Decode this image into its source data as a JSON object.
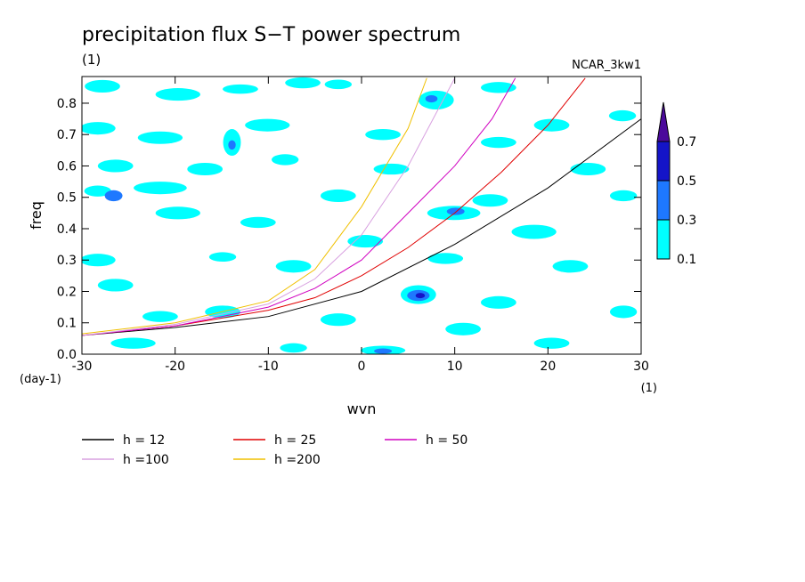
{
  "chart_data": {
    "type": "contour",
    "title": "precipitation flux S−T power spectrum",
    "subtitle": "(1)",
    "annotation": "NCAR_3kw1",
    "x_label": "wvn",
    "x_unit": "(1)",
    "y_label": "freq",
    "y_unit": "(day-1)",
    "xlim": [
      -30,
      30
    ],
    "xticks": [
      -30,
      -20,
      -10,
      0,
      10,
      20,
      30
    ],
    "ylim": [
      0,
      0.885
    ],
    "yticks": [
      {
        "value": 0,
        "label": "0.0"
      },
      0.1,
      0.2,
      0.3,
      0.4,
      0.5,
      0.6,
      0.7,
      0.8
    ],
    "levels": [
      0.1,
      0.3,
      0.5,
      0.7
    ],
    "level_colors": [
      "#00ffff",
      "#1e78ff",
      "#1414c8",
      "#4b0a9b"
    ],
    "patches": [
      {
        "x": -27.8,
        "y": 0.854,
        "w": 3.8,
        "h": 0.04,
        "level": 0.1
      },
      {
        "x": -19.7,
        "y": 0.828,
        "w": 4.8,
        "h": 0.04,
        "level": 0.1
      },
      {
        "x": -13,
        "y": 0.845,
        "w": 3.8,
        "h": 0.03,
        "level": 0.1
      },
      {
        "x": -6.3,
        "y": 0.865,
        "w": 3.8,
        "h": 0.035,
        "level": 0.1
      },
      {
        "x": -2.5,
        "y": 0.86,
        "w": 2.9,
        "h": 0.03,
        "level": 0.1
      },
      {
        "x": 8,
        "y": 0.81,
        "w": 3.8,
        "h": 0.06,
        "level": 0.1
      },
      {
        "x": 14.7,
        "y": 0.85,
        "w": 3.8,
        "h": 0.035,
        "level": 0.1
      },
      {
        "x": 28,
        "y": 0.76,
        "w": 2.9,
        "h": 0.035,
        "level": 0.1
      },
      {
        "x": 20.4,
        "y": 0.73,
        "w": 3.8,
        "h": 0.04,
        "level": 0.1
      },
      {
        "x": -28.3,
        "y": 0.72,
        "w": 3.8,
        "h": 0.04,
        "level": 0.1
      },
      {
        "x": -21.6,
        "y": 0.69,
        "w": 4.8,
        "h": 0.04,
        "level": 0.1
      },
      {
        "x": -10.1,
        "y": 0.73,
        "w": 4.8,
        "h": 0.04,
        "level": 0.1
      },
      {
        "x": -13.9,
        "y": 0.675,
        "w": 1.9,
        "h": 0.085,
        "level": 0.1
      },
      {
        "x": 2.3,
        "y": 0.7,
        "w": 3.8,
        "h": 0.035,
        "level": 0.1
      },
      {
        "x": 14.7,
        "y": 0.675,
        "w": 3.8,
        "h": 0.035,
        "level": 0.1
      },
      {
        "x": -26.4,
        "y": 0.6,
        "w": 3.8,
        "h": 0.04,
        "level": 0.1
      },
      {
        "x": -16.8,
        "y": 0.59,
        "w": 3.8,
        "h": 0.04,
        "level": 0.1
      },
      {
        "x": -8.2,
        "y": 0.62,
        "w": 2.9,
        "h": 0.035,
        "level": 0.1
      },
      {
        "x": 3.2,
        "y": 0.59,
        "w": 3.8,
        "h": 0.035,
        "level": 0.1
      },
      {
        "x": 24.3,
        "y": 0.59,
        "w": 3.8,
        "h": 0.04,
        "level": 0.1
      },
      {
        "x": -28.3,
        "y": 0.52,
        "w": 2.9,
        "h": 0.035,
        "level": 0.1
      },
      {
        "x": -21.6,
        "y": 0.53,
        "w": 5.7,
        "h": 0.04,
        "level": 0.1
      },
      {
        "x": -2.5,
        "y": 0.505,
        "w": 3.8,
        "h": 0.04,
        "level": 0.1
      },
      {
        "x": 13.8,
        "y": 0.49,
        "w": 3.8,
        "h": 0.04,
        "level": 0.1
      },
      {
        "x": 28.1,
        "y": 0.505,
        "w": 2.9,
        "h": 0.035,
        "level": 0.1
      },
      {
        "x": -19.7,
        "y": 0.45,
        "w": 4.8,
        "h": 0.04,
        "level": 0.1
      },
      {
        "x": -11.1,
        "y": 0.42,
        "w": 3.8,
        "h": 0.035,
        "level": 0.1
      },
      {
        "x": 9.9,
        "y": 0.45,
        "w": 5.7,
        "h": 0.045,
        "level": 0.1
      },
      {
        "x": 18.5,
        "y": 0.39,
        "w": 4.8,
        "h": 0.045,
        "level": 0.1
      },
      {
        "x": 0.4,
        "y": 0.36,
        "w": 3.8,
        "h": 0.04,
        "level": 0.1
      },
      {
        "x": -28.3,
        "y": 0.3,
        "w": 3.8,
        "h": 0.04,
        "level": 0.1
      },
      {
        "x": -7.3,
        "y": 0.28,
        "w": 3.8,
        "h": 0.04,
        "level": 0.1
      },
      {
        "x": 9,
        "y": 0.305,
        "w": 3.8,
        "h": 0.035,
        "level": 0.1
      },
      {
        "x": 22.4,
        "y": 0.28,
        "w": 3.8,
        "h": 0.04,
        "level": 0.1
      },
      {
        "x": -26.4,
        "y": 0.22,
        "w": 3.8,
        "h": 0.04,
        "level": 0.1
      },
      {
        "x": 6.1,
        "y": 0.19,
        "w": 3.8,
        "h": 0.06,
        "level": 0.1
      },
      {
        "x": 14.7,
        "y": 0.165,
        "w": 3.8,
        "h": 0.04,
        "level": 0.1
      },
      {
        "x": -21.6,
        "y": 0.12,
        "w": 3.8,
        "h": 0.035,
        "level": 0.1
      },
      {
        "x": -14.9,
        "y": 0.135,
        "w": 3.8,
        "h": 0.04,
        "level": 0.1
      },
      {
        "x": -2.5,
        "y": 0.11,
        "w": 3.8,
        "h": 0.04,
        "level": 0.1
      },
      {
        "x": 10.9,
        "y": 0.08,
        "w": 3.8,
        "h": 0.04,
        "level": 0.1
      },
      {
        "x": 28.1,
        "y": 0.135,
        "w": 2.9,
        "h": 0.04,
        "level": 0.1
      },
      {
        "x": -24.5,
        "y": 0.035,
        "w": 4.8,
        "h": 0.035,
        "level": 0.1
      },
      {
        "x": 2.3,
        "y": 0.012,
        "w": 4.8,
        "h": 0.03,
        "level": 0.1
      },
      {
        "x": 20.4,
        "y": 0.035,
        "w": 3.8,
        "h": 0.035,
        "level": 0.1
      },
      {
        "x": -7.3,
        "y": 0.02,
        "w": 2.9,
        "h": 0.03,
        "level": 0.1
      },
      {
        "x": -14.9,
        "y": 0.31,
        "w": 2.9,
        "h": 0.03,
        "level": 0.1
      },
      {
        "x": 7.5,
        "y": 0.814,
        "w": 1.3,
        "h": 0.023,
        "level": 0.3
      },
      {
        "x": -13.9,
        "y": 0.667,
        "w": 0.8,
        "h": 0.03,
        "level": 0.3
      },
      {
        "x": -26.6,
        "y": 0.505,
        "w": 1.9,
        "h": 0.035,
        "level": 0.3
      },
      {
        "x": 10.1,
        "y": 0.455,
        "w": 1.9,
        "h": 0.023,
        "level": 0.3
      },
      {
        "x": 6.1,
        "y": 0.187,
        "w": 2.4,
        "h": 0.035,
        "level": 0.3
      },
      {
        "x": 2.3,
        "y": 0.01,
        "w": 1.9,
        "h": 0.017,
        "level": 0.3
      },
      {
        "x": 6.3,
        "y": 0.187,
        "w": 1,
        "h": 0.017,
        "level": 0.5
      }
    ],
    "series": [
      {
        "name": "h = 12",
        "color": "#000000",
        "x": [
          -30,
          -20,
          -10,
          0,
          10,
          20,
          30
        ],
        "values": [
          0.06,
          0.085,
          0.12,
          0.2,
          0.35,
          0.53,
          0.75
        ]
      },
      {
        "name": "h = 25",
        "color": "#e00000",
        "x": [
          -30,
          -20,
          -10,
          -5,
          0,
          5,
          10,
          15,
          20,
          24
        ],
        "values": [
          0.06,
          0.09,
          0.14,
          0.18,
          0.25,
          0.34,
          0.45,
          0.58,
          0.73,
          0.88
        ]
      },
      {
        "name": "h = 50",
        "color": "#d000c0",
        "x": [
          -30,
          -20,
          -10,
          -5,
          0,
          5,
          10,
          14,
          16.5
        ],
        "values": [
          0.06,
          0.09,
          0.15,
          0.21,
          0.3,
          0.45,
          0.6,
          0.75,
          0.88
        ]
      },
      {
        "name": "h =100",
        "color": "#d8a0e0",
        "x": [
          -30,
          -20,
          -10,
          -5,
          0,
          5,
          10
        ],
        "values": [
          0.06,
          0.095,
          0.16,
          0.24,
          0.38,
          0.6,
          0.88
        ]
      },
      {
        "name": "h =200",
        "color": "#f0c000",
        "x": [
          -30,
          -20,
          -10,
          -5,
          0,
          5,
          7
        ],
        "values": [
          0.065,
          0.1,
          0.17,
          0.27,
          0.47,
          0.72,
          0.88
        ]
      }
    ]
  }
}
